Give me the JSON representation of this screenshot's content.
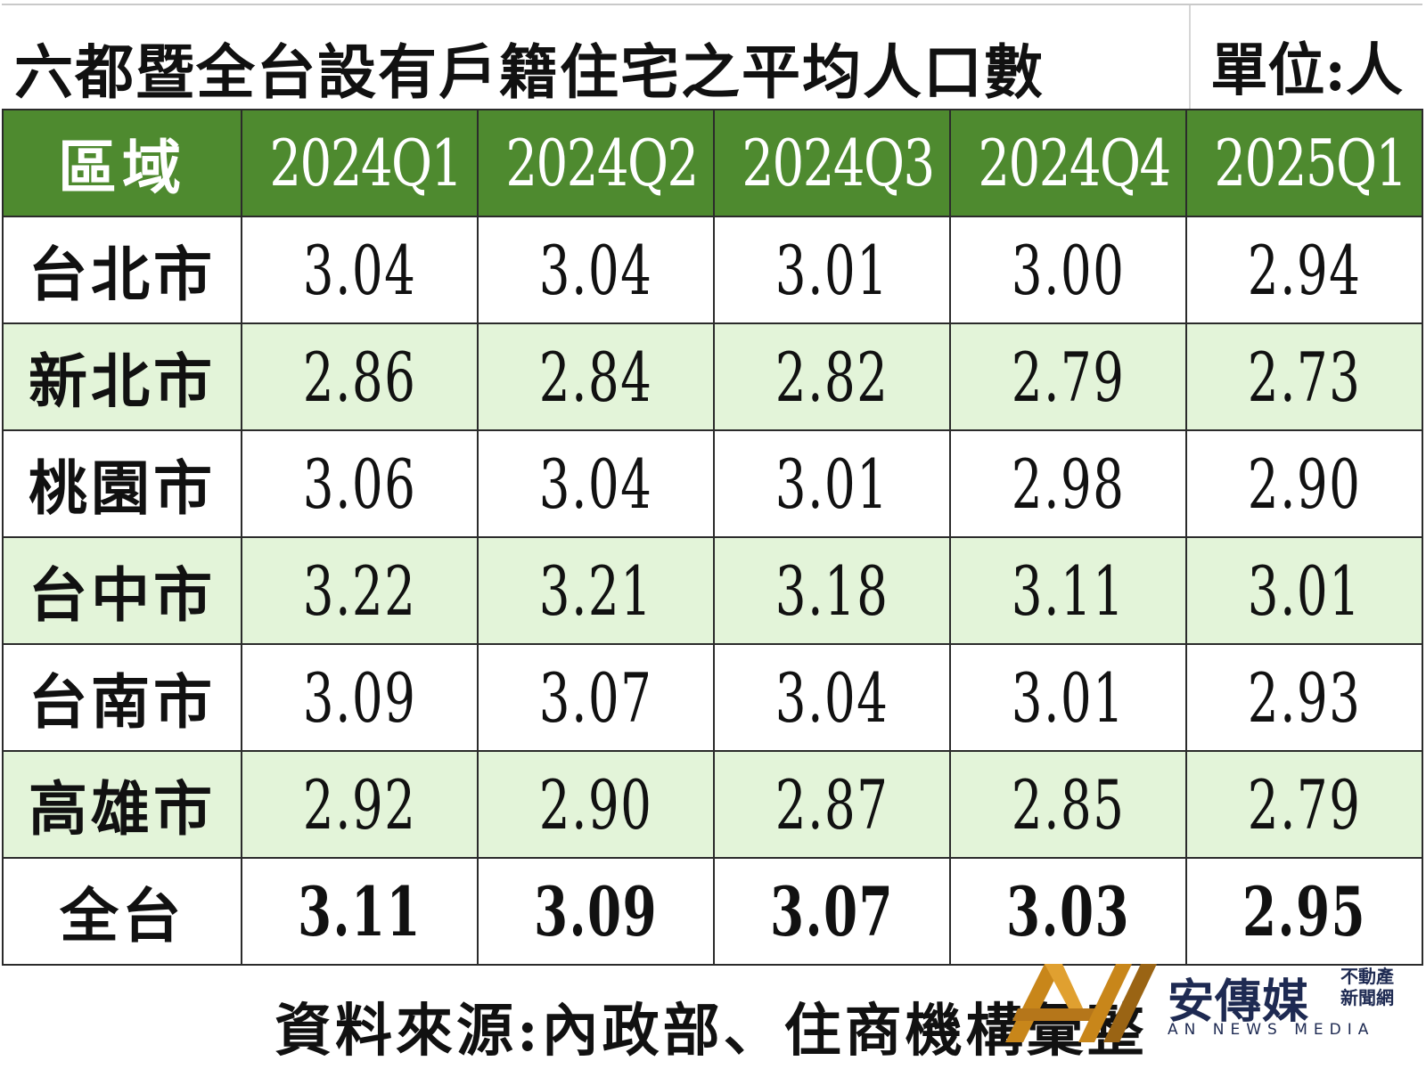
{
  "title": "六都暨全台設有戶籍住宅之平均人口數",
  "unit": "單位:人",
  "table": {
    "headers": [
      "區域",
      "2024Q1",
      "2024Q2",
      "2024Q3",
      "2024Q4",
      "2025Q1"
    ],
    "rows": [
      {
        "region": "台北市",
        "values": [
          "3.04",
          "3.04",
          "3.01",
          "3.00",
          "2.94"
        ]
      },
      {
        "region": "新北市",
        "values": [
          "2.86",
          "2.84",
          "2.82",
          "2.79",
          "2.73"
        ]
      },
      {
        "region": "桃園市",
        "values": [
          "3.06",
          "3.04",
          "3.01",
          "2.98",
          "2.90"
        ]
      },
      {
        "region": "台中市",
        "values": [
          "3.22",
          "3.21",
          "3.18",
          "3.11",
          "3.01"
        ]
      },
      {
        "region": "台南市",
        "values": [
          "3.09",
          "3.07",
          "3.04",
          "3.01",
          "2.93"
        ]
      },
      {
        "region": "高雄市",
        "values": [
          "2.92",
          "2.90",
          "2.87",
          "2.85",
          "2.79"
        ]
      },
      {
        "region": "全台",
        "values": [
          "3.11",
          "3.09",
          "3.07",
          "3.03",
          "2.95"
        ]
      }
    ]
  },
  "source": "資料來源:內政部、住商機構彙整",
  "logo": {
    "name": "安傳媒",
    "sub_line1": "不動產",
    "sub_line2": "新聞網",
    "english": "AN NEWS MEDIA"
  },
  "colors": {
    "header_bg": "#4e8a2f",
    "alt_row_bg": "#e3f4d9",
    "logo_gold": "#c8861a",
    "logo_navy": "#1e2a52"
  }
}
